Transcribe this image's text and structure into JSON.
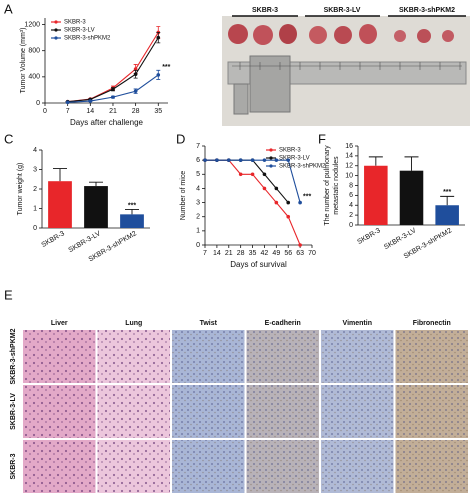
{
  "panel_letters": [
    "A",
    "B",
    "C",
    "D",
    "E",
    "F"
  ],
  "photo_b": {
    "labels": [
      "SKBR-3",
      "SKBR-3-LV",
      "SKBR-3-shPKM2"
    ]
  },
  "panel_e": {
    "columns": [
      "Liver",
      "Lung",
      "Twist",
      "E-cadherin",
      "Vimentin",
      "Fibronectin"
    ],
    "rows": [
      "SKBR-3-shPKM2",
      "SKBR-3-LV",
      "SKBR-3"
    ]
  },
  "chart_data": [
    {
      "type": "line",
      "ylabel": "Tumor Volume (mm³)",
      "xlabel": "Days after challenge",
      "x": [
        7,
        14,
        21,
        28,
        35
      ],
      "xlim": [
        0,
        38
      ],
      "xticks": [
        0,
        7,
        14,
        21,
        28,
        35
      ],
      "ylim": [
        0,
        1300
      ],
      "yticks": [
        0,
        400,
        800,
        1200
      ],
      "legend": "upper left",
      "annotation": "***",
      "series": [
        {
          "name": "SKBR-3",
          "color": "#e8262a",
          "values": [
            20,
            60,
            230,
            520,
            1080
          ],
          "errors": [
            5,
            10,
            30,
            70,
            90
          ]
        },
        {
          "name": "SKBR-3-LV",
          "color": "#111111",
          "values": [
            20,
            55,
            210,
            440,
            1000
          ],
          "errors": [
            5,
            10,
            25,
            60,
            80
          ]
        },
        {
          "name": "SKBR-3-shPKM2",
          "color": "#1f4e9c",
          "values": [
            10,
            30,
            90,
            180,
            430
          ],
          "errors": [
            3,
            8,
            15,
            35,
            70
          ]
        }
      ]
    },
    {
      "type": "bar",
      "ylabel": "Tumor weight (g)",
      "categories": [
        "SKBR-3",
        "SKBR-3-LV",
        "SKBR-3-shPKM2"
      ],
      "values": [
        2.4,
        2.15,
        0.7
      ],
      "errors": [
        0.65,
        0.2,
        0.25
      ],
      "colors": [
        "#e8262a",
        "#111111",
        "#1f4e9c"
      ],
      "ylim": [
        0,
        4
      ],
      "yticks": [
        0,
        1,
        2,
        3,
        4
      ],
      "annotation": "***"
    },
    {
      "type": "line",
      "ylabel": "Number of mice",
      "xlabel": "Days of survival",
      "xlim": [
        7,
        70
      ],
      "xticks": [
        7,
        14,
        21,
        28,
        35,
        42,
        49,
        56,
        63,
        70
      ],
      "ylim": [
        0,
        7
      ],
      "yticks": [
        0,
        1,
        2,
        3,
        4,
        5,
        6,
        7
      ],
      "legend": "upper right",
      "annotation": "***",
      "series": [
        {
          "name": "SKBR-3",
          "color": "#e8262a",
          "x": [
            7,
            14,
            21,
            28,
            35,
            42,
            49,
            56,
            63
          ],
          "values": [
            6,
            6,
            6,
            5,
            5,
            4,
            3,
            2,
            0
          ]
        },
        {
          "name": "SKBR-3-LV",
          "color": "#111111",
          "x": [
            7,
            14,
            21,
            28,
            35,
            42,
            49,
            56
          ],
          "values": [
            6,
            6,
            6,
            6,
            6,
            5,
            4,
            3
          ]
        },
        {
          "name": "SKBR-3-shPKM2",
          "color": "#1f4e9c",
          "x": [
            7,
            14,
            21,
            28,
            35,
            42,
            49,
            56,
            63
          ],
          "values": [
            6,
            6,
            6,
            6,
            6,
            6,
            6,
            6,
            3
          ]
        }
      ]
    },
    {
      "type": "bar",
      "ylabel": [
        "The number of pulmonary",
        "metastatic nodules"
      ],
      "categories": [
        "SKBR-3",
        "SKBR-3-LV",
        "SKBR-3-shPKM2"
      ],
      "values": [
        12,
        11,
        4
      ],
      "errors": [
        1.8,
        2.8,
        1.8
      ],
      "colors": [
        "#e8262a",
        "#111111",
        "#1f4e9c"
      ],
      "ylim": [
        0,
        16
      ],
      "yticks": [
        0,
        2,
        4,
        6,
        8,
        10,
        12,
        14,
        16
      ],
      "annotation": "***"
    }
  ]
}
